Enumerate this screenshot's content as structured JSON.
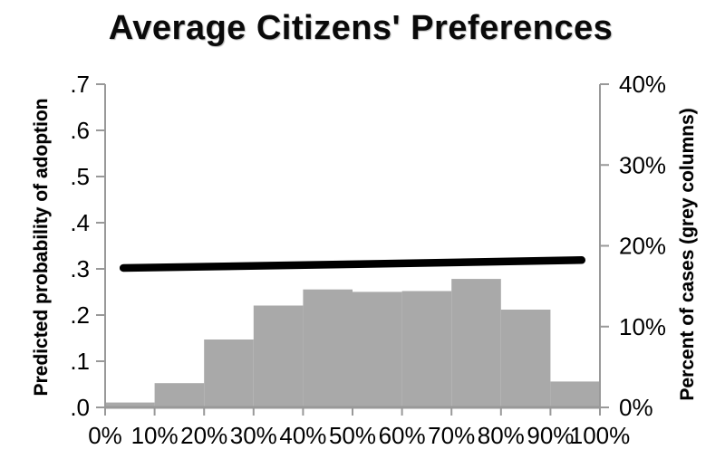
{
  "chart_data": {
    "type": "bar+line",
    "title": "Average Citizens' Preferences",
    "left_axis": {
      "label": "Predicted probability of adoption",
      "ticks": [
        ".0",
        ".1",
        ".2",
        ".3",
        ".4",
        ".5",
        ".6",
        ".7"
      ],
      "range": [
        0,
        0.7
      ]
    },
    "right_axis": {
      "label": "Percent of cases (grey columns)",
      "ticks": [
        "0%",
        "10%",
        "20%",
        "30%",
        "40%"
      ],
      "range": [
        0,
        40
      ]
    },
    "x_axis": {
      "tick_labels": [
        "0%",
        "10%",
        "20%",
        "30%",
        "40%",
        "50%",
        "60%",
        "70%",
        "80%",
        "90%",
        "100%"
      ],
      "range_pct": [
        0,
        100
      ]
    },
    "bars": {
      "name": "Percent of cases",
      "axis": "right",
      "bin_edges_pct": [
        0,
        10,
        20,
        30,
        40,
        50,
        60,
        70,
        80,
        90,
        100
      ],
      "values_pct": [
        0.6,
        3.0,
        8.4,
        12.6,
        14.6,
        14.3,
        14.4,
        15.9,
        12.1,
        3.2
      ]
    },
    "line": {
      "name": "Predicted probability of adoption",
      "axis": "left",
      "x_pct": [
        3.7,
        50,
        96.3
      ],
      "y": [
        0.302,
        0.31,
        0.319
      ]
    },
    "colors": {
      "bars": "#a9a9a9",
      "line": "#000000",
      "axis": "#999999",
      "text": "#000000"
    },
    "grid": false,
    "legend": false
  }
}
